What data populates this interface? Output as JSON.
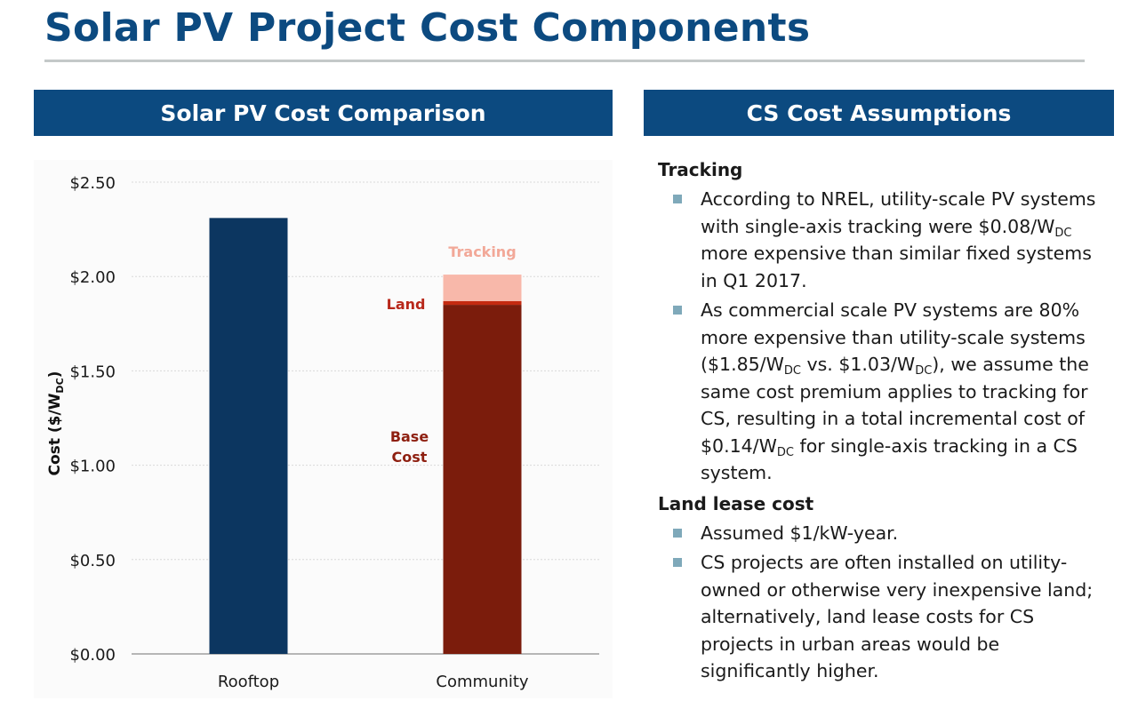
{
  "page": {
    "title": "Solar PV Project Cost Components"
  },
  "left_panel": {
    "header": "Solar PV Cost Comparison"
  },
  "right_panel": {
    "header": "CS Cost Assumptions",
    "sections": [
      {
        "heading": "Tracking",
        "bullets": [
          "According to NREL, utility-scale PV systems with single-axis tracking were $0.08/W<sub>DC</sub> more expensive than similar fixed systems in Q1 2017.",
          "As commercial scale PV systems are 80% more expensive than utility-scale systems ($1.85/W<sub>DC</sub> vs. $1.03/W<sub>DC</sub>), we assume the same cost premium applies to tracking for CS, resulting in a total incremental cost of $0.14/W<sub>DC</sub> for single-axis tracking in a CS system."
        ]
      },
      {
        "heading": "Land lease cost",
        "bullets": [
          "Assumed $1/kW-year.",
          "CS projects are often installed on utility-owned or otherwise very inexpensive land; alternatively, land lease costs for CS projects in urban areas would be significantly higher."
        ]
      }
    ]
  },
  "chart_data": {
    "type": "bar",
    "stacked": true,
    "categories": [
      "Rooftop",
      "Community"
    ],
    "ylabel": "Cost ($/W",
    "ylabel_sub": "DC",
    "ylabel_close": ")",
    "ylim": [
      0,
      2.5
    ],
    "yticks": [
      0,
      0.5,
      1.0,
      1.5,
      2.0,
      2.5
    ],
    "ytick_labels": [
      "$0.00",
      "$0.50",
      "$1.00",
      "$1.50",
      "$2.00",
      "$2.50"
    ],
    "grid": true,
    "series": [
      {
        "name": "Rooftop",
        "values": [
          2.31,
          0
        ],
        "color": "#0c3660"
      },
      {
        "name": "Base Cost",
        "values": [
          0,
          1.85
        ],
        "color": "#7b1c0c",
        "label_color": "#8e1f10",
        "label_lines": [
          "Base",
          "Cost"
        ]
      },
      {
        "name": "Land",
        "values": [
          0,
          0.02
        ],
        "color": "#c42a10",
        "label_color": "#b8281a",
        "label_lines": [
          "Land"
        ]
      },
      {
        "name": "Tracking",
        "values": [
          0,
          0.14
        ],
        "color": "#f8b8aa",
        "label_color": "#f2a898",
        "label_lines": [
          "Tracking"
        ]
      }
    ]
  }
}
